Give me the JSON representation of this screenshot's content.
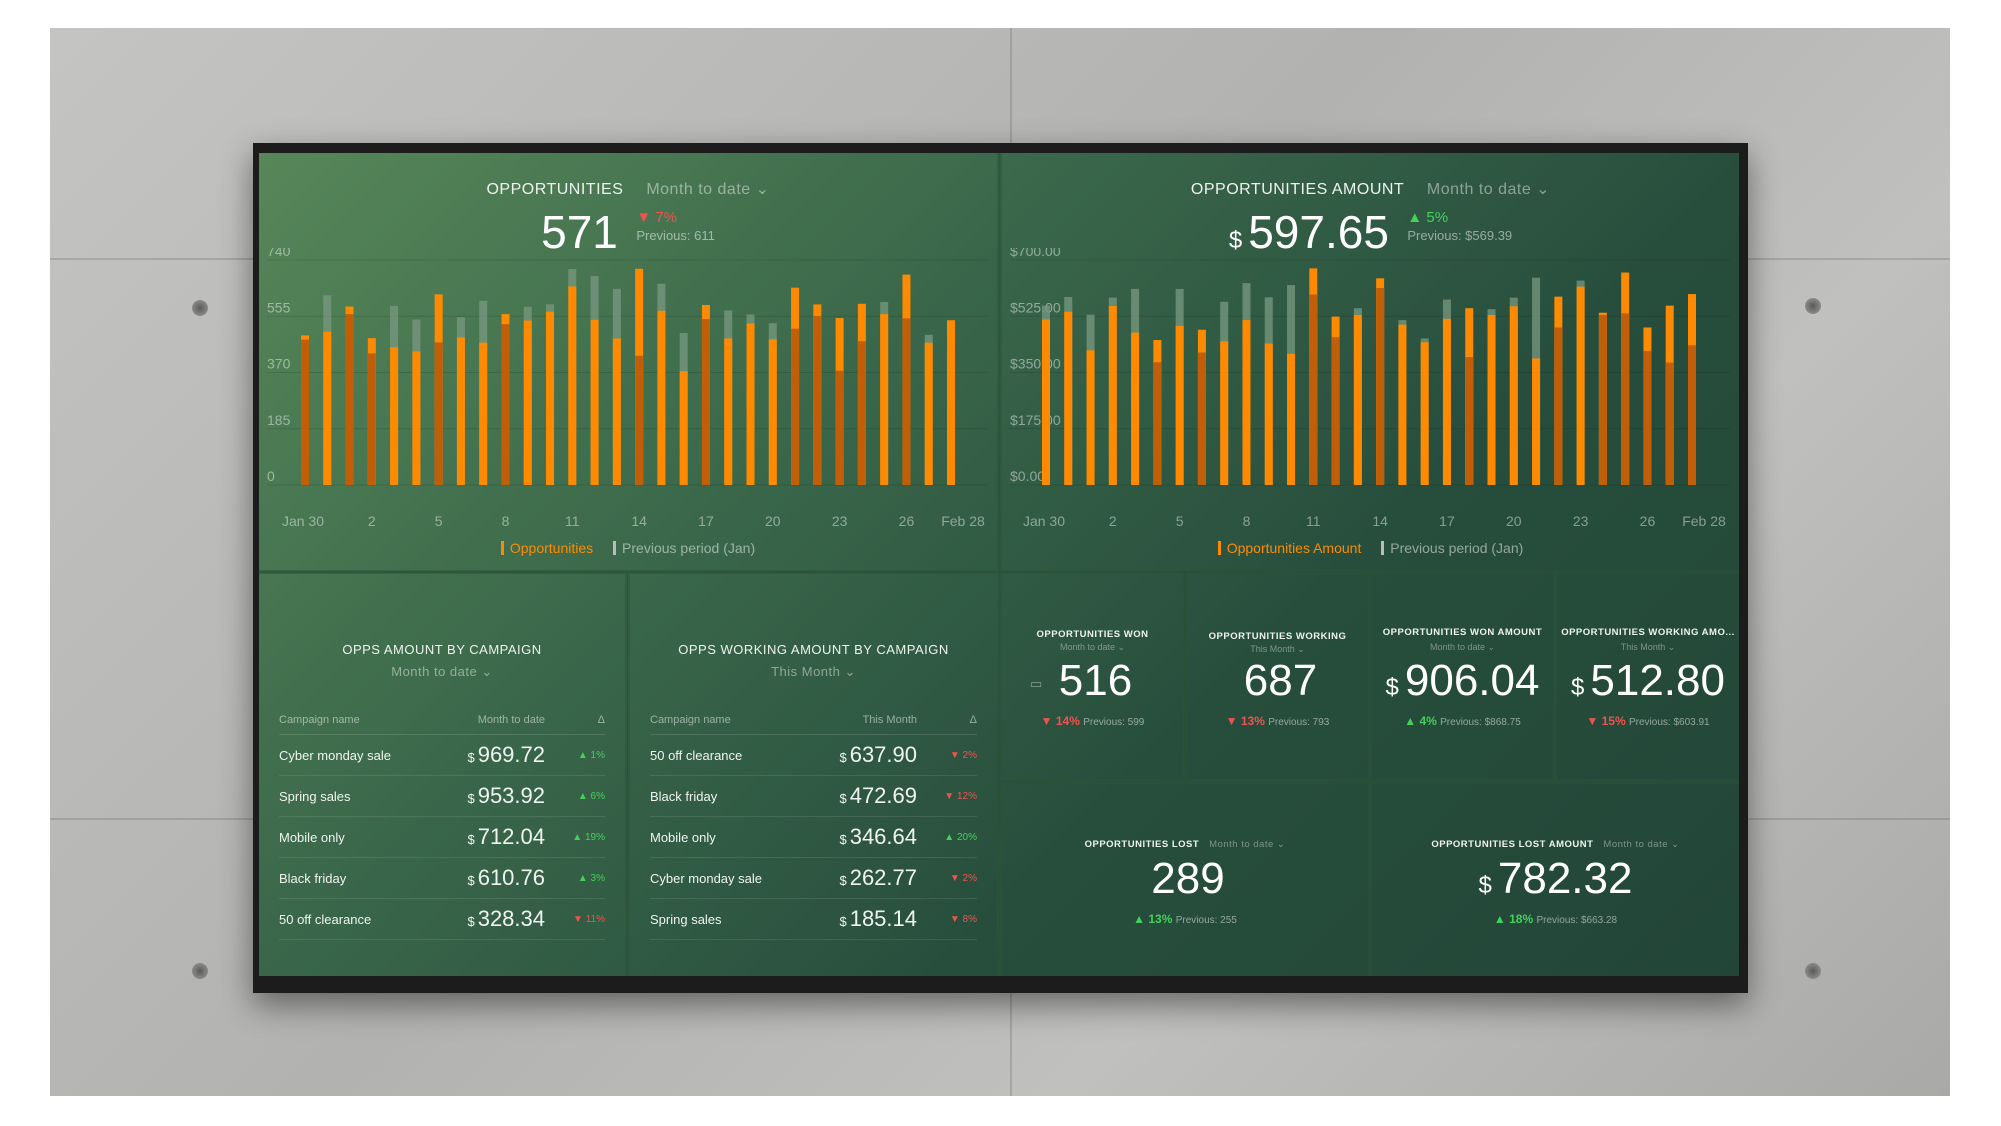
{
  "opportunities": {
    "title": "OPPORTUNITIES",
    "period": "Month to date",
    "value": "571",
    "change": "7%",
    "change_dir": "down",
    "previous": "Previous: 611",
    "legend_current": "Opportunities",
    "legend_previous": "Previous period (Jan)"
  },
  "opportunities_amount": {
    "title": "OPPORTUNITIES AMOUNT",
    "period": "Month to date",
    "currency": "$",
    "value": "597.65",
    "change": "5%",
    "change_dir": "up",
    "previous": "Previous: $569.39",
    "legend_current": "Opportunities Amount",
    "legend_previous": "Previous period (Jan)"
  },
  "chart_data": [
    {
      "type": "bar",
      "title": "Opportunities",
      "ylim": [
        0,
        740
      ],
      "yticks": [
        "0",
        "185",
        "370",
        "555",
        "740"
      ],
      "xticks": [
        "Jan 30",
        "2",
        "5",
        "8",
        "11",
        "14",
        "17",
        "20",
        "23",
        "26",
        "Feb 28"
      ],
      "series": [
        {
          "name": "Opportunities",
          "values": [
            492,
            504,
            587,
            483,
            453,
            439,
            627,
            485,
            468,
            562,
            541,
            570,
            653,
            543,
            482,
            711,
            573,
            374,
            592,
            482,
            531,
            479,
            649,
            594,
            549,
            596,
            562,
            692,
            468,
            542
          ]
        },
        {
          "name": "Previous period (Jan)",
          "values": [
            478,
            624,
            562,
            433,
            589,
            544,
            469,
            552,
            606,
            529,
            586,
            594,
            710,
            687,
            645,
            425,
            662,
            500,
            546,
            574,
            561,
            532,
            514,
            556,
            376,
            473,
            602,
            548,
            494,
            0
          ]
        }
      ]
    },
    {
      "type": "bar",
      "title": "Opportunities Amount",
      "ylim": [
        0,
        700
      ],
      "yticks": [
        "$0.00",
        "$175.00",
        "$350.00",
        "$525.00",
        "$700.00"
      ],
      "xticks": [
        "Jan 30",
        "2",
        "5",
        "8",
        "11",
        "14",
        "17",
        "20",
        "23",
        "26",
        "Feb 28"
      ],
      "series": [
        {
          "name": "Opportunities Amount",
          "values": [
            515,
            539,
            419,
            557,
            474,
            451,
            495,
            483,
            447,
            513,
            440,
            408,
            674,
            524,
            529,
            643,
            499,
            444,
            517,
            550,
            529,
            556,
            394,
            586,
            617,
            536,
            661,
            490,
            558,
            594
          ]
        },
        {
          "name": "Previous period (Jan)",
          "values": [
            558,
            585,
            530,
            583,
            610,
            382,
            610,
            412,
            570,
            628,
            584,
            622,
            593,
            460,
            550,
            613,
            513,
            456,
            577,
            398,
            547,
            583,
            645,
            490,
            636,
            529,
            534,
            417,
            381,
            435
          ]
        }
      ]
    }
  ],
  "campaign_amount": {
    "title": "OPPS AMOUNT BY CAMPAIGN",
    "period": "Month to date",
    "headers": [
      "Campaign name",
      "Month to date",
      "Δ"
    ],
    "rows": [
      {
        "name": "Cyber monday sale",
        "value": "969.72",
        "change": "1%",
        "dir": "up"
      },
      {
        "name": "Spring sales",
        "value": "953.92",
        "change": "6%",
        "dir": "up"
      },
      {
        "name": "Mobile only",
        "value": "712.04",
        "change": "19%",
        "dir": "up"
      },
      {
        "name": "Black friday",
        "value": "610.76",
        "change": "3%",
        "dir": "up"
      },
      {
        "name": "50 off clearance",
        "value": "328.34",
        "change": "11%",
        "dir": "down"
      }
    ]
  },
  "campaign_working": {
    "title": "OPPS WORKING AMOUNT BY CAMPAIGN",
    "period": "This Month",
    "headers": [
      "Campaign name",
      "This Month",
      "Δ"
    ],
    "rows": [
      {
        "name": "50 off clearance",
        "value": "637.90",
        "change": "2%",
        "dir": "down"
      },
      {
        "name": "Black friday",
        "value": "472.69",
        "change": "12%",
        "dir": "down"
      },
      {
        "name": "Mobile only",
        "value": "346.64",
        "change": "20%",
        "dir": "up"
      },
      {
        "name": "Cyber monday sale",
        "value": "262.77",
        "change": "2%",
        "dir": "down"
      },
      {
        "name": "Spring sales",
        "value": "185.14",
        "change": "8%",
        "dir": "down"
      }
    ]
  },
  "currency": "$",
  "tiles": [
    {
      "title": "OPPORTUNITIES WON",
      "period": "Month to date",
      "prefix": "",
      "value": "516",
      "change": "14%",
      "dir": "down",
      "previous": "Previous: 599"
    },
    {
      "title": "OPPORTUNITIES WORKING",
      "period": "This Month",
      "prefix": "",
      "value": "687",
      "change": "13%",
      "dir": "down",
      "previous": "Previous: 793"
    },
    {
      "title": "OPPORTUNITIES WON AMOUNT",
      "period": "Month to date",
      "prefix": "$",
      "value": "906.04",
      "change": "4%",
      "dir": "up",
      "previous": "Previous: $868.75"
    },
    {
      "title": "OPPORTUNITIES WORKING AMO...",
      "period": "This Month",
      "prefix": "$",
      "value": "512.80",
      "change": "15%",
      "dir": "down",
      "previous": "Previous: $603.91"
    },
    {
      "title": "OPPORTUNITIES LOST",
      "period": "Month to date",
      "prefix": "",
      "value": "289",
      "change": "13%",
      "dir": "up",
      "previous": "Previous: 255"
    },
    {
      "title": "OPPORTUNITIES LOST AMOUNT",
      "period": "Month to date",
      "prefix": "$",
      "value": "782.32",
      "change": "18%",
      "dir": "up",
      "previous": "Previous: $663.28"
    }
  ],
  "colors": {
    "current": "#ff8a00",
    "current_dark": "#c05f08",
    "previous": "#7a9a82",
    "down": "#ef5350",
    "up": "#43d15a"
  }
}
